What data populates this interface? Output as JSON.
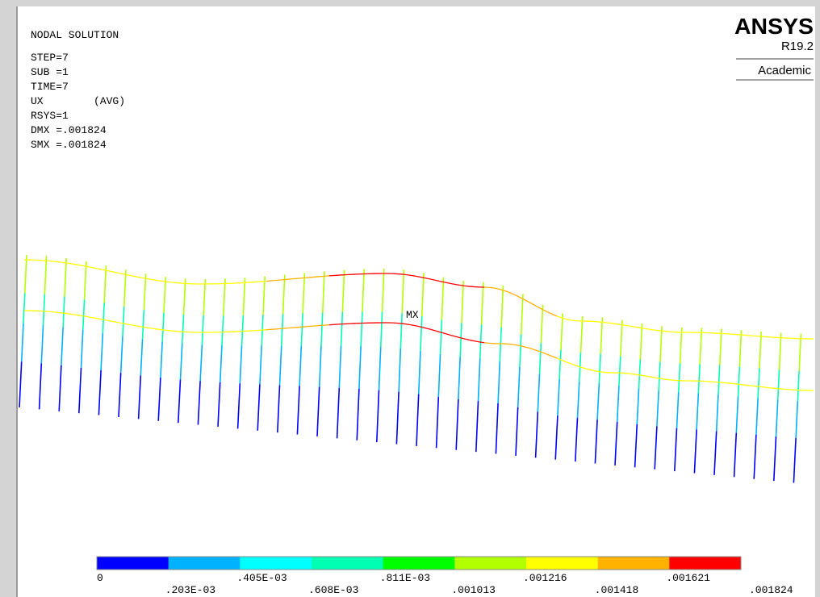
{
  "header": {
    "lines": [
      "NODAL SOLUTION",
      "STEP=7",
      "SUB =1",
      "TIME=7",
      "UX        (AVG)",
      "RSYS=1",
      "DMX =.001824",
      "SMX =.001824"
    ]
  },
  "logo": {
    "brand": "ANSYS",
    "version": "R19.2",
    "edition": "Academic"
  },
  "plot": {
    "max_label": "MX"
  },
  "legend": {
    "colors": [
      "#0000ff",
      "#00b2ff",
      "#00ffff",
      "#00ffb2",
      "#00ff00",
      "#b2ff00",
      "#ffff00",
      "#ffb200",
      "#ff0000"
    ],
    "labels": [
      "0",
      ".203E-03",
      ".405E-03",
      ".608E-03",
      ".811E-03",
      ".001013",
      ".001216",
      ".001418",
      ".001621",
      ".001824"
    ]
  }
}
